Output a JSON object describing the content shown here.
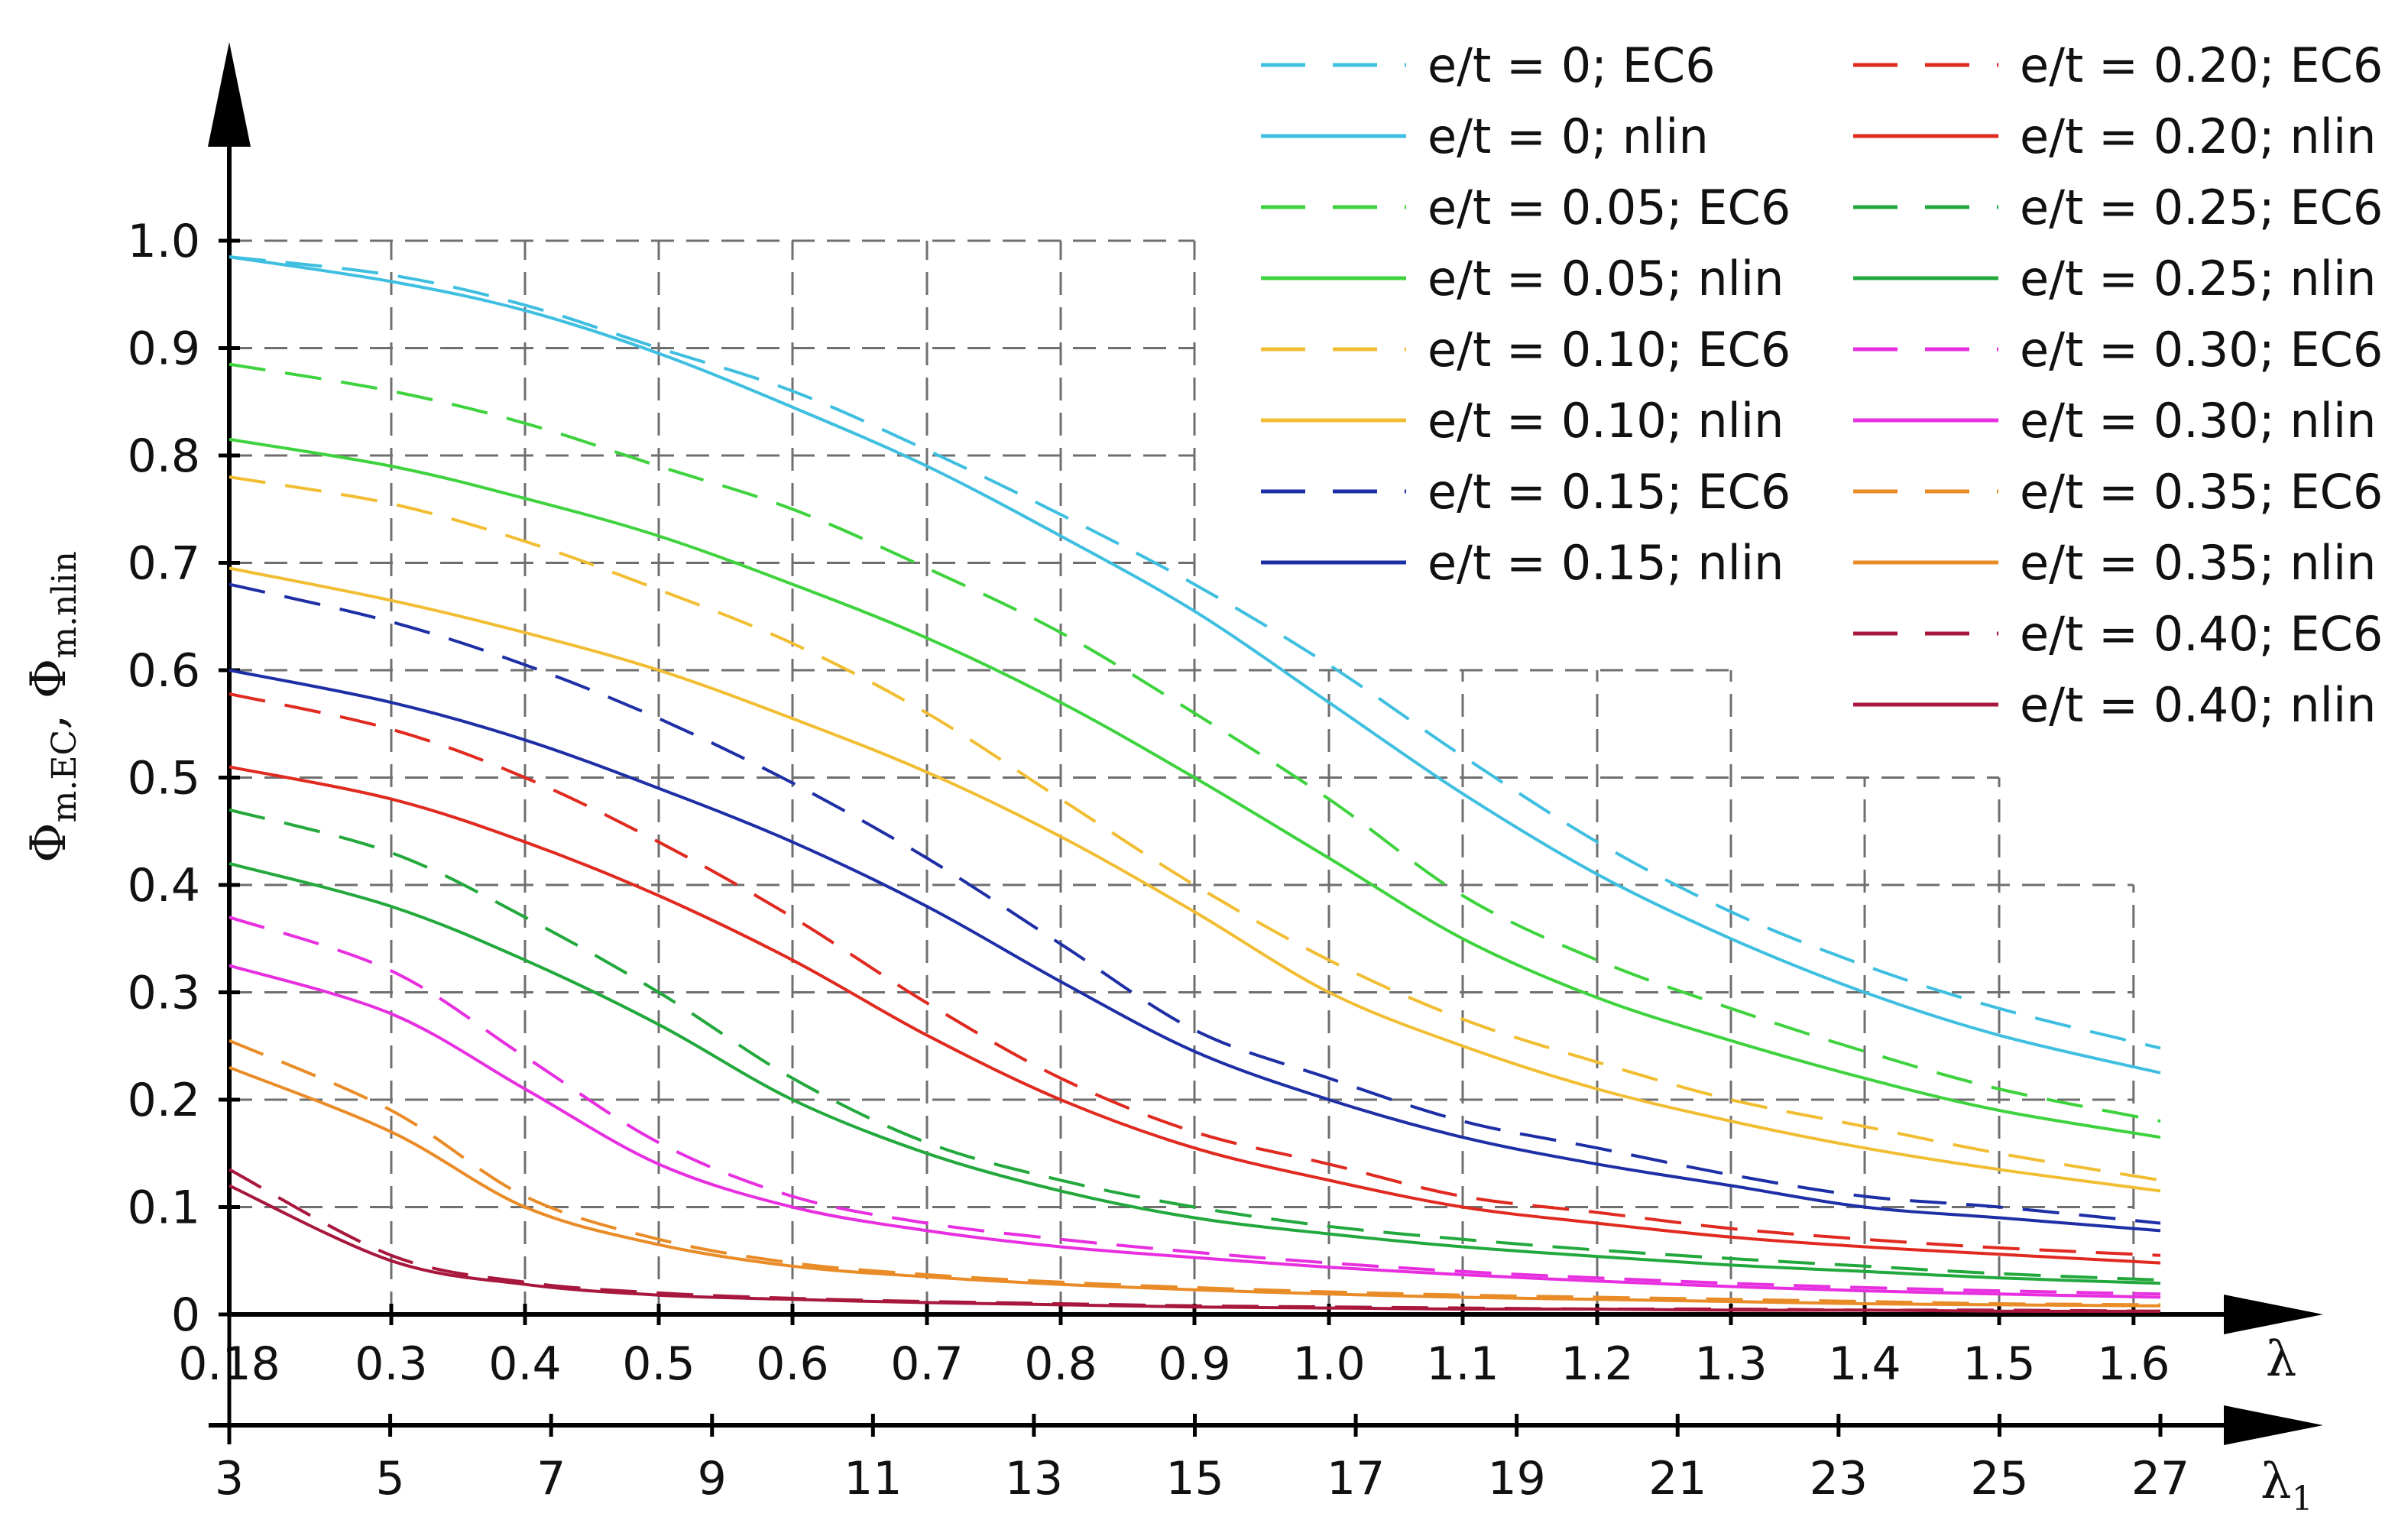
{
  "chart_data": {
    "type": "line",
    "title": "",
    "ylabel": {
      "main": "Φ",
      "sub1": "m.EC",
      "sep": ", ",
      "main2": "Φ",
      "sub2": "m.nlin"
    },
    "xlabel": "λ",
    "xlabel2": {
      "main": "λ",
      "sub": "1"
    },
    "xlim": [
      0.18,
      1.62
    ],
    "ylim": [
      0,
      1.0
    ],
    "x_ticks": [
      0.18,
      0.3,
      0.4,
      0.5,
      0.6,
      0.7,
      0.8,
      0.9,
      1.0,
      1.1,
      1.2,
      1.3,
      1.4,
      1.5,
      1.6
    ],
    "x_tick_labels": [
      "0.18",
      "0.3",
      "0.4",
      "0.5",
      "0.6",
      "0.7",
      "0.8",
      "0.9",
      "1.0",
      "1.1",
      "1.2",
      "1.3",
      "1.4",
      "1.5",
      "1.6"
    ],
    "y_ticks": [
      0,
      0.1,
      0.2,
      0.3,
      0.4,
      0.5,
      0.6,
      0.7,
      0.8,
      0.9,
      1.0
    ],
    "y_tick_labels": [
      "0",
      "0.1",
      "0.2",
      "0.3",
      "0.4",
      "0.5",
      "0.6",
      "0.7",
      "0.8",
      "0.9",
      "1.0"
    ],
    "secondary_axis": {
      "label_values": [
        3,
        5,
        7,
        9,
        11,
        13,
        15,
        17,
        19,
        21,
        23,
        25,
        27
      ],
      "tick_labels": [
        "3",
        "5",
        "7",
        "9",
        "11",
        "13",
        "15",
        "17",
        "19",
        "21",
        "23",
        "25",
        "27"
      ]
    },
    "grid": "dashed, stepped envelope",
    "legend_position": "top-right",
    "x": [
      0.18,
      0.3,
      0.4,
      0.5,
      0.6,
      0.7,
      0.8,
      0.9,
      1.0,
      1.1,
      1.2,
      1.3,
      1.4,
      1.5,
      1.62
    ],
    "series": [
      {
        "name": "e/t = 0; EC6",
        "color": "#3fbfe0",
        "dash": true,
        "values": [
          0.985,
          0.968,
          0.94,
          0.9,
          0.86,
          0.805,
          0.745,
          0.68,
          0.605,
          0.52,
          0.44,
          0.375,
          0.325,
          0.285,
          0.248
        ]
      },
      {
        "name": "e/t = 0; nlin",
        "color": "#3fbfe0",
        "dash": false,
        "values": [
          0.985,
          0.962,
          0.935,
          0.895,
          0.845,
          0.79,
          0.725,
          0.655,
          0.57,
          0.485,
          0.41,
          0.35,
          0.3,
          0.26,
          0.225
        ]
      },
      {
        "name": "e/t = 0.05; EC6",
        "color": "#3ed33e",
        "dash": true,
        "values": [
          0.885,
          0.86,
          0.83,
          0.79,
          0.75,
          0.695,
          0.635,
          0.56,
          0.48,
          0.39,
          0.33,
          0.285,
          0.245,
          0.21,
          0.18
        ]
      },
      {
        "name": "e/t = 0.05; nlin",
        "color": "#3ed33e",
        "dash": false,
        "values": [
          0.815,
          0.79,
          0.76,
          0.725,
          0.68,
          0.63,
          0.57,
          0.5,
          0.425,
          0.35,
          0.295,
          0.255,
          0.22,
          0.19,
          0.165
        ]
      },
      {
        "name": "e/t = 0.10; EC6",
        "color": "#f1be33",
        "dash": true,
        "values": [
          0.78,
          0.755,
          0.72,
          0.675,
          0.625,
          0.56,
          0.48,
          0.4,
          0.33,
          0.275,
          0.235,
          0.2,
          0.175,
          0.15,
          0.125
        ]
      },
      {
        "name": "e/t = 0.10; nlin",
        "color": "#f1be33",
        "dash": false,
        "values": [
          0.695,
          0.665,
          0.635,
          0.6,
          0.555,
          0.505,
          0.445,
          0.375,
          0.3,
          0.25,
          0.21,
          0.18,
          0.155,
          0.135,
          0.115
        ]
      },
      {
        "name": "e/t = 0.15; EC6",
        "color": "#1e2fa6",
        "dash": true,
        "values": [
          0.68,
          0.645,
          0.605,
          0.555,
          0.495,
          0.425,
          0.345,
          0.265,
          0.22,
          0.18,
          0.155,
          0.13,
          0.11,
          0.1,
          0.085
        ]
      },
      {
        "name": "e/t = 0.15; nlin",
        "color": "#1e2fa6",
        "dash": false,
        "values": [
          0.6,
          0.57,
          0.535,
          0.49,
          0.44,
          0.38,
          0.31,
          0.245,
          0.2,
          0.165,
          0.14,
          0.12,
          0.1,
          0.09,
          0.078
        ]
      },
      {
        "name": "e/t = 0.20; EC6",
        "color": "#e02a20",
        "dash": true,
        "values": [
          0.578,
          0.545,
          0.5,
          0.44,
          0.37,
          0.29,
          0.22,
          0.17,
          0.14,
          0.11,
          0.095,
          0.08,
          0.07,
          0.062,
          0.055
        ]
      },
      {
        "name": "e/t = 0.20; nlin",
        "color": "#e02a20",
        "dash": false,
        "values": [
          0.51,
          0.48,
          0.44,
          0.39,
          0.33,
          0.26,
          0.2,
          0.155,
          0.125,
          0.1,
          0.085,
          0.072,
          0.063,
          0.056,
          0.048
        ]
      },
      {
        "name": "e/t = 0.25; EC6",
        "color": "#22a83c",
        "dash": true,
        "values": [
          0.47,
          0.43,
          0.37,
          0.3,
          0.22,
          0.16,
          0.125,
          0.1,
          0.082,
          0.07,
          0.06,
          0.052,
          0.045,
          0.038,
          0.032
        ]
      },
      {
        "name": "e/t = 0.25; nlin",
        "color": "#22a83c",
        "dash": false,
        "values": [
          0.42,
          0.38,
          0.33,
          0.27,
          0.2,
          0.15,
          0.115,
          0.09,
          0.075,
          0.063,
          0.054,
          0.046,
          0.04,
          0.034,
          0.029
        ]
      },
      {
        "name": "e/t = 0.30; EC6",
        "color": "#e72fe0",
        "dash": true,
        "values": [
          0.37,
          0.32,
          0.24,
          0.16,
          0.11,
          0.085,
          0.07,
          0.058,
          0.048,
          0.04,
          0.034,
          0.029,
          0.025,
          0.022,
          0.019
        ]
      },
      {
        "name": "e/t = 0.30; nlin",
        "color": "#e72fe0",
        "dash": false,
        "values": [
          0.325,
          0.28,
          0.21,
          0.14,
          0.1,
          0.078,
          0.063,
          0.053,
          0.044,
          0.037,
          0.031,
          0.026,
          0.022,
          0.019,
          0.016
        ]
      },
      {
        "name": "e/t = 0.35; EC6",
        "color": "#e98b27",
        "dash": true,
        "values": [
          0.255,
          0.19,
          0.11,
          0.07,
          0.048,
          0.037,
          0.03,
          0.025,
          0.021,
          0.018,
          0.016,
          0.014,
          0.012,
          0.01,
          0.009
        ]
      },
      {
        "name": "e/t = 0.35; nlin",
        "color": "#e98b27",
        "dash": false,
        "values": [
          0.23,
          0.17,
          0.1,
          0.065,
          0.045,
          0.035,
          0.028,
          0.023,
          0.019,
          0.016,
          0.014,
          0.012,
          0.01,
          0.009,
          0.008
        ]
      },
      {
        "name": "e/t = 0.40; EC6",
        "color": "#a8173c",
        "dash": true,
        "values": [
          0.135,
          0.055,
          0.03,
          0.02,
          0.015,
          0.012,
          0.01,
          0.008,
          0.007,
          0.006,
          0.005,
          0.005,
          0.004,
          0.004,
          0.003
        ]
      },
      {
        "name": "e/t = 0.40; nlin",
        "color": "#a8173c",
        "dash": false,
        "values": [
          0.12,
          0.05,
          0.028,
          0.018,
          0.014,
          0.011,
          0.009,
          0.007,
          0.006,
          0.005,
          0.005,
          0.004,
          0.004,
          0.003,
          0.003
        ]
      }
    ]
  }
}
